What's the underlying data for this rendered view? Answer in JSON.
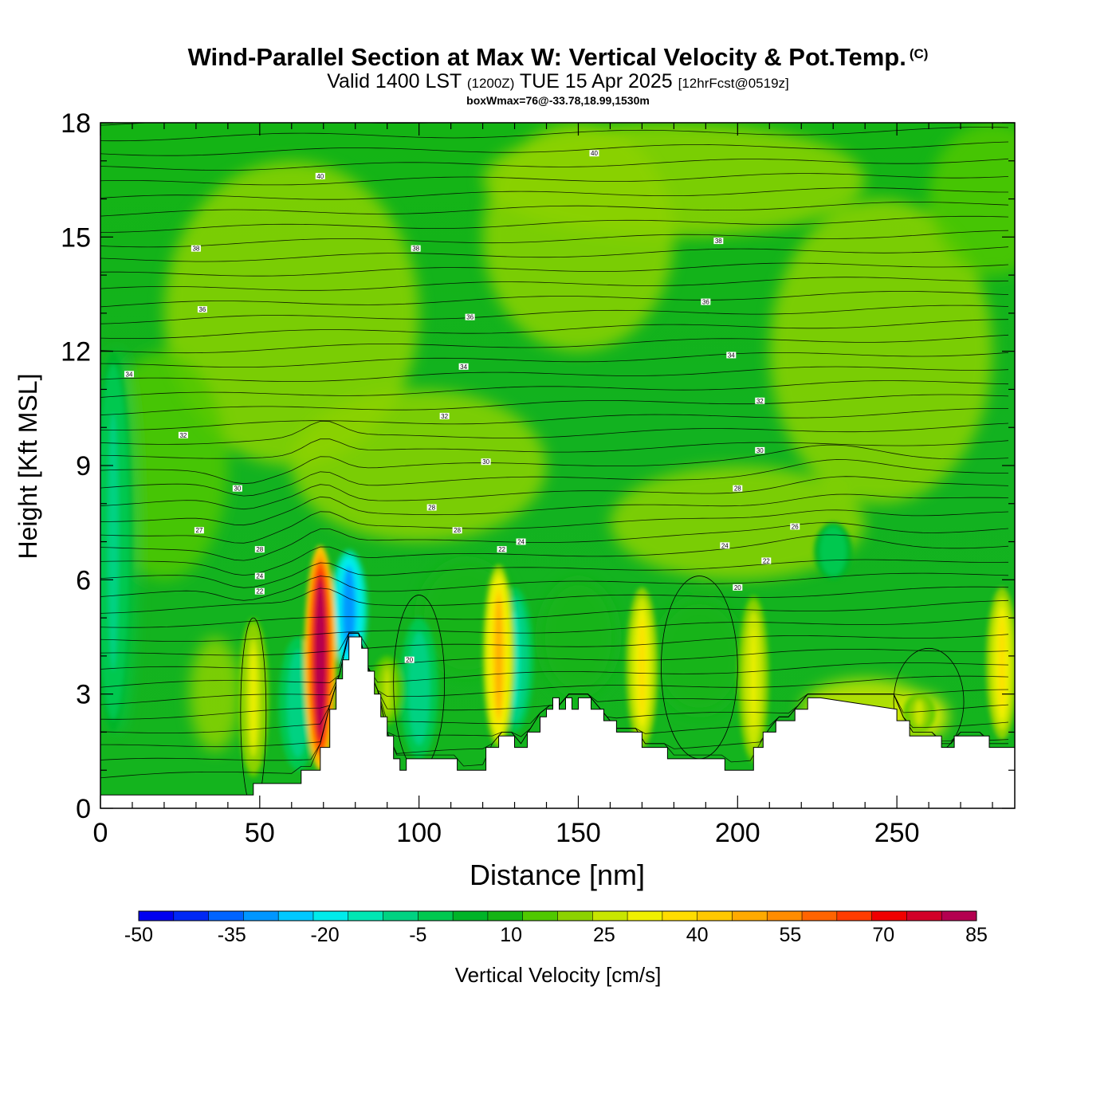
{
  "header": {
    "title": "Wind-Parallel Section at Max W: Vertical Velocity & Pot.Temp.",
    "copyright": "(C)",
    "subtitle_main_1": "Valid 1400 LST",
    "subtitle_utc": "(1200Z)",
    "subtitle_main_2": "TUE 15 Apr 2025",
    "subtitle_fcst": "[12hrFcst@0519z]",
    "box_info": "boxWmax=76@-33.78,18.99,1530m"
  },
  "chart_data": {
    "type": "heatmap",
    "xlabel": "Distance [nm]",
    "ylabel": "Height [Kft MSL]",
    "xlim": [
      0,
      287
    ],
    "ylim": [
      0,
      18
    ],
    "xticks": [
      "0",
      "50",
      "100",
      "150",
      "200",
      "250"
    ],
    "yticks": [
      "0",
      "3",
      "6",
      "9",
      "12",
      "15",
      "18"
    ],
    "colorbar": {
      "label": "Vertical Velocity [cm/s]",
      "range": [
        -50,
        85
      ],
      "step": 5,
      "tick_labels": [
        "-50",
        "-35",
        "-20",
        "-5",
        "10",
        "25",
        "40",
        "55",
        "70",
        "85"
      ],
      "colors": [
        "#0000f0",
        "#0028f5",
        "#0064ff",
        "#0096ff",
        "#00c8ff",
        "#00ebeb",
        "#00e6b4",
        "#00d282",
        "#00c850",
        "#00b428",
        "#14b414",
        "#50c800",
        "#8cd200",
        "#c8e600",
        "#f0f000",
        "#ffdc00",
        "#ffc800",
        "#ffaa00",
        "#ff8c00",
        "#ff6400",
        "#ff3c00",
        "#f00000",
        "#d20028",
        "#b40050"
      ]
    },
    "terrain_kft": {
      "x": [
        0,
        48,
        48,
        63,
        63,
        69,
        69,
        72,
        72,
        74,
        74,
        76,
        76,
        78,
        78,
        82,
        82,
        84,
        84,
        86,
        86,
        88,
        88,
        90,
        90,
        92,
        92,
        94,
        94,
        96,
        96,
        112,
        112,
        121,
        121,
        125,
        125,
        130,
        130,
        134,
        134,
        138,
        138,
        140,
        140,
        142,
        142,
        144,
        144,
        146,
        146,
        148,
        148,
        150,
        150,
        154,
        154,
        158,
        158,
        162,
        162,
        170,
        170,
        178,
        178,
        196,
        196,
        205,
        205,
        208,
        208,
        212,
        212,
        218,
        218,
        222,
        222,
        226,
        226,
        250,
        250,
        254,
        254,
        264,
        264,
        268,
        268,
        279,
        279,
        287
      ],
      "y": [
        0.35,
        0.35,
        0.65,
        0.65,
        1.0,
        1.0,
        1.6,
        1.6,
        2.6,
        2.6,
        3.4,
        3.4,
        3.9,
        3.9,
        4.5,
        4.5,
        4.2,
        4.2,
        3.6,
        3.6,
        3.0,
        3.0,
        2.4,
        2.4,
        1.9,
        1.9,
        1.3,
        1.3,
        1.0,
        1.0,
        1.3,
        1.3,
        1.0,
        1.0,
        1.6,
        1.6,
        1.9,
        1.9,
        1.6,
        1.6,
        2.0,
        2.0,
        2.4,
        2.4,
        2.6,
        2.6,
        2.9,
        2.9,
        2.6,
        2.6,
        2.9,
        2.9,
        2.6,
        2.6,
        2.9,
        2.9,
        2.6,
        2.6,
        2.3,
        2.3,
        2.0,
        2.0,
        1.6,
        1.6,
        1.3,
        1.3,
        1.0,
        1.0,
        1.6,
        1.6,
        2.0,
        2.0,
        2.3,
        2.3,
        2.6,
        2.6,
        2.9,
        2.9,
        2.9,
        2.6,
        2.3,
        2.3,
        1.9,
        1.9,
        1.6,
        1.6,
        1.9,
        1.9,
        1.6,
        1.6
      ]
    },
    "updraft_cores": [
      {
        "x": 69,
        "ybot": 1.0,
        "ytop": 6.9,
        "w_max": 76
      },
      {
        "x": 125,
        "ybot": 1.6,
        "ytop": 6.4,
        "w_max": 35
      },
      {
        "x": 170,
        "ybot": 1.6,
        "ytop": 5.8,
        "w_max": 25
      },
      {
        "x": 205,
        "ybot": 1.2,
        "ytop": 5.6,
        "w_max": 22
      },
      {
        "x": 48,
        "ybot": 0.8,
        "ytop": 5.0,
        "w_max": 20
      },
      {
        "x": 283,
        "ybot": 1.8,
        "ytop": 5.8,
        "w_max": 25
      },
      {
        "x": 257,
        "ybot": 2.0,
        "ytop": 3.0,
        "w_max": 18
      },
      {
        "x": 90,
        "ybot": 2.2,
        "ytop": 4.0,
        "w_max": 15
      }
    ],
    "downdraft_cores": [
      {
        "x": 78,
        "ybot": 3.6,
        "ytop": 6.8,
        "w_min": -35
      },
      {
        "x": 130,
        "ybot": 2.0,
        "ytop": 5.8,
        "w_min": -18
      },
      {
        "x": 100,
        "ybot": 1.3,
        "ytop": 5.0,
        "w_min": -15
      },
      {
        "x": 62,
        "ybot": 1.0,
        "ytop": 4.5,
        "w_min": -15
      },
      {
        "x": 4,
        "ybot": 2.0,
        "ytop": 12.0,
        "w_min": -12
      },
      {
        "x": 230,
        "ybot": 6.0,
        "ytop": 7.5,
        "w_min": -10
      }
    ],
    "contour_labels": [
      {
        "text": "40",
        "x": 69,
        "y": 16.6
      },
      {
        "text": "40",
        "x": 155,
        "y": 17.2
      },
      {
        "text": "38",
        "x": 30,
        "y": 14.7
      },
      {
        "text": "38",
        "x": 99,
        "y": 14.7
      },
      {
        "text": "38",
        "x": 194,
        "y": 14.9
      },
      {
        "text": "36",
        "x": 32,
        "y": 13.1
      },
      {
        "text": "36",
        "x": 116,
        "y": 12.9
      },
      {
        "text": "36",
        "x": 190,
        "y": 13.3
      },
      {
        "text": "34",
        "x": 9,
        "y": 11.4
      },
      {
        "text": "34",
        "x": 114,
        "y": 11.6
      },
      {
        "text": "34",
        "x": 198,
        "y": 11.9
      },
      {
        "text": "32",
        "x": 26,
        "y": 9.8
      },
      {
        "text": "32",
        "x": 108,
        "y": 10.3
      },
      {
        "text": "32",
        "x": 207,
        "y": 10.7
      },
      {
        "text": "30",
        "x": 43,
        "y": 8.4
      },
      {
        "text": "30",
        "x": 121,
        "y": 9.1
      },
      {
        "text": "30",
        "x": 207,
        "y": 9.4
      },
      {
        "text": "27",
        "x": 31,
        "y": 7.3
      },
      {
        "text": "28",
        "x": 104,
        "y": 7.9
      },
      {
        "text": "28",
        "x": 200,
        "y": 8.4
      },
      {
        "text": "28",
        "x": 50,
        "y": 6.8
      },
      {
        "text": "28",
        "x": 112,
        "y": 7.3
      },
      {
        "text": "26",
        "x": 218,
        "y": 7.4
      },
      {
        "text": "24",
        "x": 50,
        "y": 6.1
      },
      {
        "text": "24",
        "x": 132,
        "y": 7.0
      },
      {
        "text": "24",
        "x": 196,
        "y": 6.9
      },
      {
        "text": "22",
        "x": 50,
        "y": 5.7
      },
      {
        "text": "22",
        "x": 126,
        "y": 6.8
      },
      {
        "text": "22",
        "x": 209,
        "y": 6.5
      },
      {
        "text": "20",
        "x": 97,
        "y": 3.9
      },
      {
        "text": "20",
        "x": 200,
        "y": 5.8
      }
    ]
  }
}
